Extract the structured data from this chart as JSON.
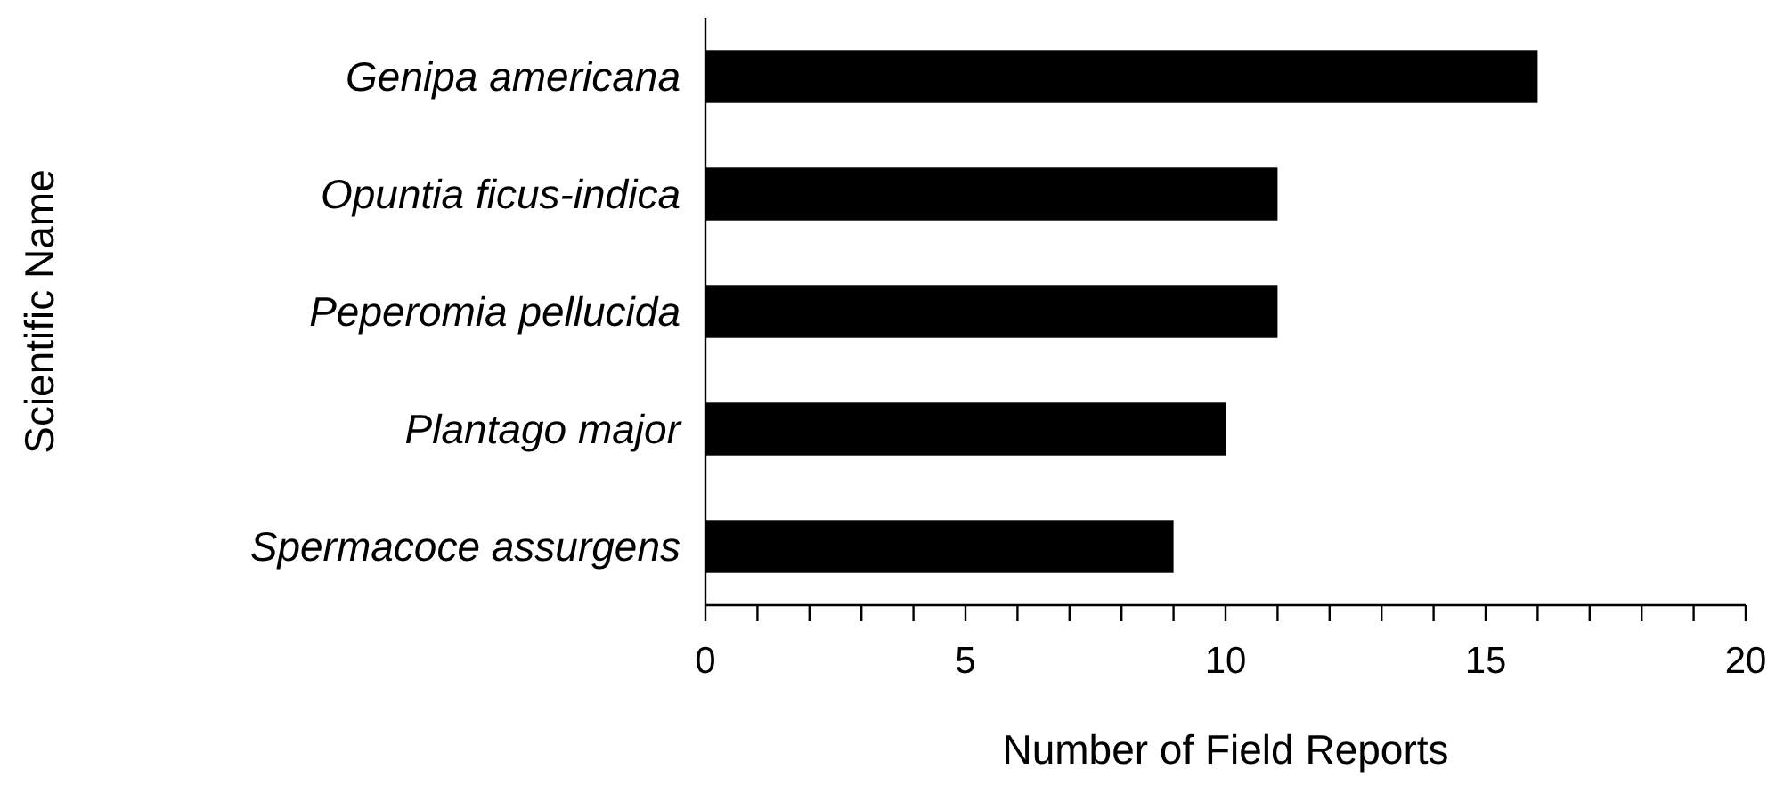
{
  "chart_data": {
    "type": "bar",
    "orientation": "horizontal",
    "xlabel": "Number of Field Reports",
    "ylabel": "Scientific Name",
    "categories": [
      "Genipa americana",
      "Opuntia ficus-indica",
      "Peperomia pellucida",
      "Plantago major",
      "Spermacoce assurgens"
    ],
    "values": [
      16,
      11,
      11,
      10,
      9
    ],
    "color": "#000000",
    "xlim": [
      0,
      20
    ],
    "xticks": [
      0,
      {
        "value": 1,
        "label": null
      },
      {
        "value": 2,
        "label": null
      },
      {
        "value": 3,
        "label": null
      },
      {
        "value": 4,
        "label": null
      },
      5,
      {
        "value": 6,
        "label": null
      },
      {
        "value": 7,
        "label": null
      },
      {
        "value": 8,
        "label": null
      },
      {
        "value": 9,
        "label": null
      },
      10,
      {
        "value": 11,
        "label": null
      },
      {
        "value": 12,
        "label": null
      },
      {
        "value": 13,
        "label": null
      },
      {
        "value": 14,
        "label": null
      },
      15,
      {
        "value": 16,
        "label": null
      },
      {
        "value": 17,
        "label": null
      },
      {
        "value": 18,
        "label": null
      },
      {
        "value": 19,
        "label": null
      },
      20
    ],
    "grid": false
  }
}
